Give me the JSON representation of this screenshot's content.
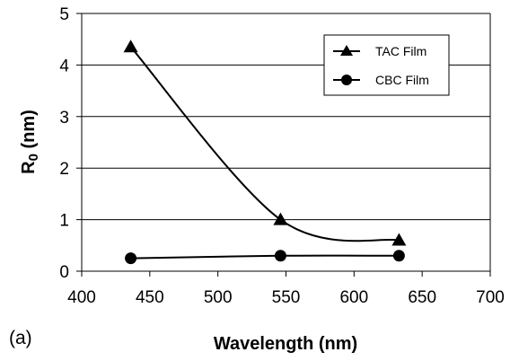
{
  "chart_data": {
    "type": "line",
    "panel_label": "(a)",
    "xlabel": "Wavelength (nm)",
    "ylabel_main": "R",
    "ylabel_sub": "0",
    "ylabel_rest": " (nm)",
    "xlim": [
      400,
      700
    ],
    "ylim": [
      0,
      5
    ],
    "xticks": [
      400,
      450,
      500,
      550,
      600,
      650,
      700
    ],
    "yticks": [
      0,
      1,
      2,
      3,
      4,
      5
    ],
    "grid": "horizontal",
    "legend_position": "top-right",
    "series": [
      {
        "name": "TAC Film",
        "marker": "triangle",
        "x": [
          436,
          546,
          633
        ],
        "y": [
          4.35,
          1.0,
          0.6
        ]
      },
      {
        "name": "CBC Film",
        "marker": "circle",
        "x": [
          436,
          546,
          633
        ],
        "y": [
          0.25,
          0.3,
          0.3
        ]
      }
    ]
  }
}
